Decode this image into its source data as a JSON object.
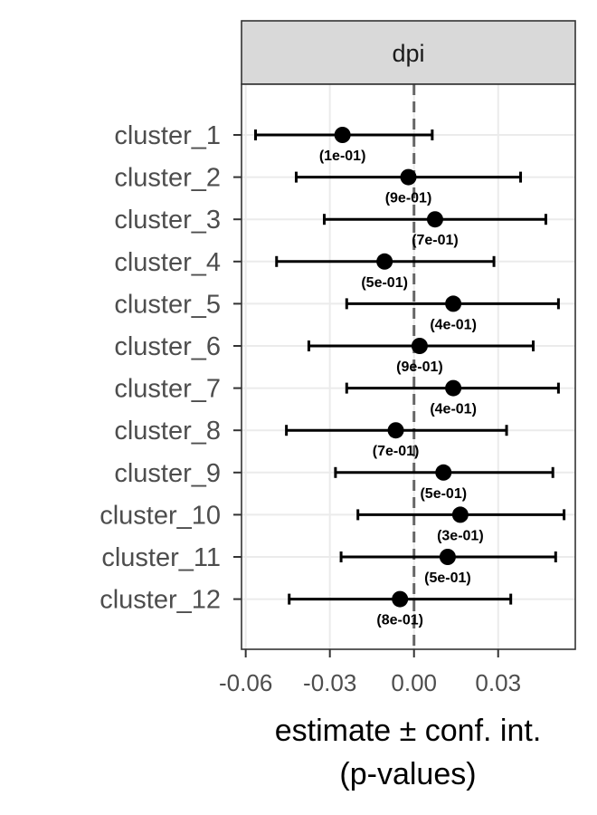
{
  "chart_data": {
    "type": "forest",
    "facet_label": "dpi",
    "xlabel_line1": "estimate ± conf. int.",
    "xlabel_line2": "(p-values)",
    "xlim": [
      -0.0615,
      0.0575
    ],
    "x_ticks": [
      -0.06,
      -0.03,
      0.0,
      0.03
    ],
    "x_tick_labels": [
      "-0.06",
      "-0.03",
      "0.00",
      "0.03"
    ],
    "reference_line": 0.0,
    "grid": true,
    "rows": [
      {
        "label": "cluster_1",
        "estimate": -0.0255,
        "ci_low": -0.0565,
        "ci_high": 0.0065,
        "pval": "(1e-01)"
      },
      {
        "label": "cluster_2",
        "estimate": -0.002,
        "ci_low": -0.042,
        "ci_high": 0.038,
        "pval": "(9e-01)"
      },
      {
        "label": "cluster_3",
        "estimate": 0.0075,
        "ci_low": -0.032,
        "ci_high": 0.047,
        "pval": "(7e-01)"
      },
      {
        "label": "cluster_4",
        "estimate": -0.0105,
        "ci_low": -0.049,
        "ci_high": 0.0285,
        "pval": "(5e-01)"
      },
      {
        "label": "cluster_5",
        "estimate": 0.014,
        "ci_low": -0.024,
        "ci_high": 0.0515,
        "pval": "(4e-01)"
      },
      {
        "label": "cluster_6",
        "estimate": 0.002,
        "ci_low": -0.0375,
        "ci_high": 0.0425,
        "pval": "(9e-01)"
      },
      {
        "label": "cluster_7",
        "estimate": 0.014,
        "ci_low": -0.024,
        "ci_high": 0.0515,
        "pval": "(4e-01)"
      },
      {
        "label": "cluster_8",
        "estimate": -0.0065,
        "ci_low": -0.0455,
        "ci_high": 0.033,
        "pval": "(7e-01)"
      },
      {
        "label": "cluster_9",
        "estimate": 0.0105,
        "ci_low": -0.028,
        "ci_high": 0.0495,
        "pval": "(5e-01)"
      },
      {
        "label": "cluster_10",
        "estimate": 0.0165,
        "ci_low": -0.02,
        "ci_high": 0.0535,
        "pval": "(3e-01)"
      },
      {
        "label": "cluster_11",
        "estimate": 0.012,
        "ci_low": -0.026,
        "ci_high": 0.0505,
        "pval": "(5e-01)"
      },
      {
        "label": "cluster_12",
        "estimate": -0.005,
        "ci_low": -0.0445,
        "ci_high": 0.0345,
        "pval": "(8e-01)"
      }
    ]
  }
}
